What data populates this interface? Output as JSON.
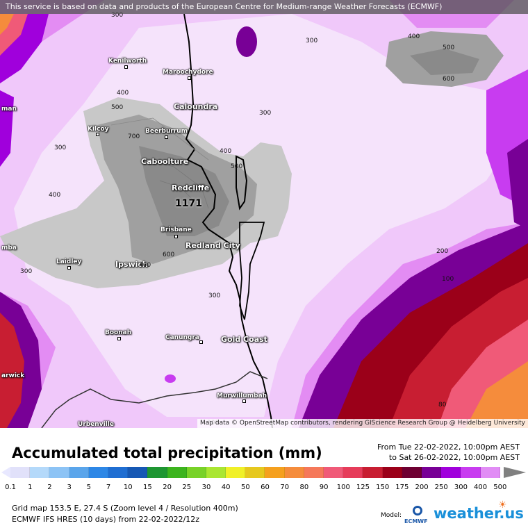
{
  "banner": "This service is based on data and products of the European Centre for Medium-range Weather Forecasts (ECMWF)",
  "attribution": "Map data © OpenStreetMap contributors, rendering GIScience Research Group @ Heidelberg University",
  "map": {
    "cities": [
      {
        "id": "kenilworth",
        "name": "Kenilworth",
        "size": "small"
      },
      {
        "id": "maroochydore",
        "name": "Maroochydore",
        "size": "small"
      },
      {
        "id": "caloundra",
        "name": "Caloundra",
        "size": "big"
      },
      {
        "id": "kilcoy",
        "name": "Kilcoy",
        "size": "small"
      },
      {
        "id": "beerburrum",
        "name": "Beerburrum",
        "size": "small"
      },
      {
        "id": "caboolture",
        "name": "Caboolture",
        "size": "big"
      },
      {
        "id": "redcliffe",
        "name": "Redcliffe",
        "size": "big"
      },
      {
        "id": "brisbane",
        "name": "Brisbane",
        "size": "small"
      },
      {
        "id": "redland",
        "name": "Redland City",
        "size": "big"
      },
      {
        "id": "laidley",
        "name": "Laidley",
        "size": "small"
      },
      {
        "id": "ipswich",
        "name": "Ipswich",
        "size": "big"
      },
      {
        "id": "boonah",
        "name": "Boonah",
        "size": "small"
      },
      {
        "id": "canungra",
        "name": "Canungra",
        "size": "small"
      },
      {
        "id": "goldcoast",
        "name": "Gold Coast",
        "size": "big"
      },
      {
        "id": "murwillumbah",
        "name": "Murwillumbah",
        "size": "small"
      },
      {
        "id": "uki",
        "name": "Urbenville",
        "size": "small"
      },
      {
        "id": "toowoomba",
        "name": "mba",
        "size": "small"
      },
      {
        "id": "gympie",
        "name": "man",
        "size": "small"
      },
      {
        "id": "warwick",
        "name": "arwick",
        "size": "small"
      }
    ],
    "peak_value": "1171",
    "contour_labels": [
      "300",
      "300",
      "400",
      "500",
      "600",
      "400",
      "300",
      "300",
      "400",
      "500",
      "700",
      "400",
      "500",
      "300",
      "400",
      "300",
      "600",
      "300",
      "200",
      "100",
      "80",
      "200"
    ]
  },
  "legend": {
    "title": "Accumulated total precipitation (mm)",
    "period_from": "From Tue 22-02-2022, 10:00pm AEST",
    "period_to": "to Sat 26-02-2022, 10:00pm AEST",
    "scale_values": [
      "0.1",
      "1",
      "2",
      "3",
      "5",
      "7",
      "10",
      "15",
      "20",
      "25",
      "30",
      "40",
      "50",
      "60",
      "70",
      "80",
      "90",
      "100",
      "125",
      "150",
      "175",
      "200",
      "250",
      "300",
      "400",
      "500"
    ],
    "scale_colors": [
      "#e1e1fa",
      "#b4d9fa",
      "#8cc3f5",
      "#5aa5eb",
      "#2d87e6",
      "#1f6ed2",
      "#1658b4",
      "#1e9632",
      "#3cb41e",
      "#78d228",
      "#aae632",
      "#f0f028",
      "#e6c81e",
      "#f5a01e",
      "#f58c3c",
      "#f5785a",
      "#f05a78",
      "#e63c5a",
      "#c81e32",
      "#9b0019",
      "#6e0032",
      "#780096",
      "#a000dc",
      "#c83cf0",
      "#e18cf5",
      "#f0c8fa",
      "#c8c8c8"
    ],
    "grid_info": "Grid map 153.5 E, 27.4 S (Zoom level 4 / Resolution 400m)",
    "model_info": "ECMWF IFS HRES (10 days) from  22-02-2022/12z",
    "model_label": "Model:",
    "model_logo": "ECMWF",
    "brand": "weather.us"
  }
}
